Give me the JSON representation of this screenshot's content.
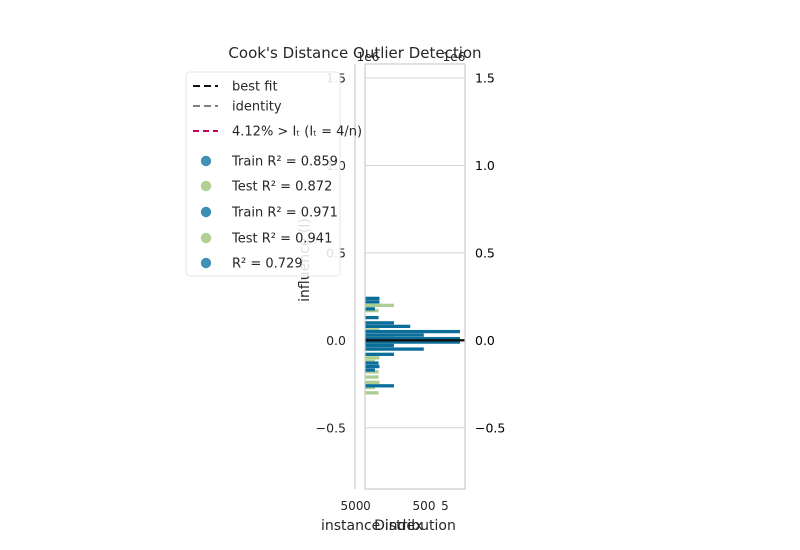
{
  "chart_data": {
    "type": "bar",
    "title": "Cook's Distance Outlier Detection",
    "xlabel_main": "instance index",
    "xlabel_dist": "Distribution",
    "ylabel": "influence (I)",
    "ylim": [
      -0.85,
      1.58
    ],
    "yticks": [
      "1.5",
      "1.0",
      "0.5",
      "0.0",
      "−0.5"
    ],
    "ytick_values": [
      1.5,
      1.0,
      0.5,
      0.0,
      -0.5
    ],
    "right_yticks": [
      "1.5",
      "1.0",
      "0.5",
      "0.0",
      "−0.5"
    ],
    "top_offsets": [
      "1e6",
      "1e6"
    ],
    "main_xtick": "500",
    "dist_xticks": [
      "0",
      "500",
      "5"
    ],
    "grid": true,
    "legend_position": "upper-left",
    "legend": [
      {
        "label": "best fit",
        "kind": "line",
        "color": "#111111",
        "dash": "7,4"
      },
      {
        "label": "identity",
        "kind": "line",
        "color": "#808080",
        "dash": "7,4"
      },
      {
        "label": "4.12% > Iₜ (Iₜ = 4/n)",
        "kind": "line",
        "color": "#c0005a",
        "dash": "6,4"
      },
      {
        "label": "Train R² = 0.859",
        "kind": "point",
        "color": "#4191b5"
      },
      {
        "label": "Test R² = 0.872",
        "kind": "point",
        "color": "#b2cf95"
      },
      {
        "label": "Train R² = 0.971",
        "kind": "point",
        "color": "#3c8fb3"
      },
      {
        "label": "Test R² = 0.941",
        "kind": "point",
        "color": "#b2cf95"
      },
      {
        "label": "R² = 0.729",
        "kind": "point",
        "color": "#4191b5"
      }
    ],
    "best_fit_y": 0.0,
    "colors": {
      "train": "#0b6e9a",
      "test": "#a8c98a",
      "best_fit": "#111111"
    },
    "series": [
      {
        "name": "Train",
        "bin_centers": [
          0.24,
          0.22,
          0.18,
          0.13,
          0.1,
          0.08,
          0.05,
          0.03,
          0.01,
          -0.01,
          -0.03,
          -0.05,
          -0.08,
          -0.13,
          -0.15,
          -0.17,
          -0.26
        ],
        "counts": [
          160,
          160,
          110,
          150,
          320,
          500,
          1050,
          650,
          1050,
          1050,
          320,
          650,
          320,
          150,
          160,
          110,
          320
        ]
      },
      {
        "name": "Test",
        "bin_centers": [
          0.2,
          0.17,
          0.06,
          0.02,
          0.0,
          -0.02,
          -0.05,
          -0.1,
          -0.12,
          -0.18,
          -0.21,
          -0.24,
          -0.27,
          -0.3
        ],
        "counts": [
          320,
          150,
          160,
          320,
          420,
          320,
          160,
          160,
          110,
          150,
          150,
          160,
          110,
          150
        ]
      }
    ]
  }
}
